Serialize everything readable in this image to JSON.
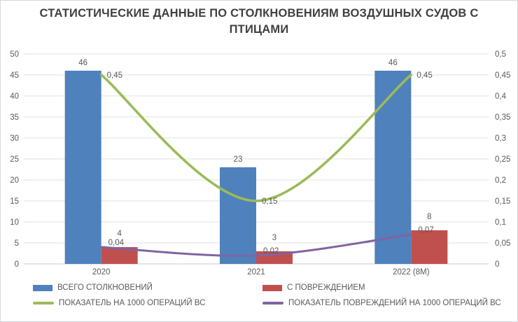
{
  "title": "СТАТИСТИЧЕСКИЕ ДАННЫЕ ПО СТОЛКНОВЕНИЯМ ВОЗДУШНЫХ СУДОВ С ПТИЦАМИ",
  "colors": {
    "total_bar": "#4F81BD",
    "damage_bar": "#C0504D",
    "rate_line": "#9BBB59",
    "damage_rate_line": "#8064A2",
    "gridline": "#E0E0E0",
    "axis_line": "#C9C9C9",
    "axis_text": "#595959",
    "title_text": "#404040"
  },
  "legend": {
    "items": [
      {
        "label": "ВСЕГО СТОЛКНОВЕНИЙ",
        "type": "bar",
        "color_key": "total_bar"
      },
      {
        "label": "С ПОВРЕЖДЕНИЕМ",
        "type": "bar",
        "color_key": "damage_bar"
      },
      {
        "label": "ПОКАЗАТЕЛЬ НА 1000 ОПЕРАЦИЙ ВС",
        "type": "line",
        "color_key": "rate_line"
      },
      {
        "label": "ПОКАЗАТЕЛЬ ПОВРЕЖДЕНИЙ НА 1000 ОПЕРАЦИЙ ВС",
        "type": "line",
        "color_key": "damage_rate_line"
      }
    ]
  },
  "chart_data": {
    "type": "combo",
    "title": "СТАТИСТИЧЕСКИЕ ДАННЫЕ ПО СТОЛКНОВЕНИЯМ ВОЗДУШНЫХ СУДОВ С ПТИЦАМИ",
    "categories": [
      "2020",
      "2021",
      "2022 (8М)"
    ],
    "series": [
      {
        "key": "total",
        "name": "ВСЕГО СТОЛКНОВЕНИЙ",
        "type": "bar",
        "axis": "left",
        "color_key": "total_bar",
        "values": [
          46,
          23,
          46
        ],
        "labels": [
          "46",
          "23",
          "46"
        ]
      },
      {
        "key": "damage",
        "name": "С ПОВРЕЖДЕНИЕМ",
        "type": "bar",
        "axis": "left",
        "color_key": "damage_bar",
        "values": [
          4,
          3,
          8
        ],
        "labels": [
          "4",
          "3",
          "8"
        ]
      },
      {
        "key": "rate",
        "name": "ПОКАЗАТЕЛЬ НА 1000 ОПЕРАЦИЙ ВС",
        "type": "line",
        "axis": "right",
        "color_key": "rate_line",
        "smooth": true,
        "values": [
          0.45,
          0.15,
          0.45
        ],
        "labels": [
          "0,45",
          "0,15",
          "0,45"
        ]
      },
      {
        "key": "damage_rate",
        "name": "ПОКАЗАТЕЛЬ ПОВРЕЖДЕНИЙ НА 1000 ОПЕРАЦИЙ ВС",
        "type": "line",
        "axis": "right",
        "color_key": "damage_rate_line",
        "smooth": true,
        "values": [
          0.04,
          0.02,
          0.07
        ],
        "labels": [
          "0,04",
          "0,02",
          "0,07"
        ]
      }
    ],
    "left_axis": {
      "min": 0,
      "max": 50,
      "step": 5,
      "tick_labels": [
        "0",
        "5",
        "10",
        "15",
        "20",
        "25",
        "30",
        "35",
        "40",
        "45",
        "50"
      ]
    },
    "right_axis": {
      "min": 0,
      "max": 0.5,
      "step": 0.05,
      "tick_labels": [
        "0",
        "0,05",
        "0,1",
        "0,15",
        "0,2",
        "0,25",
        "0,3",
        "0,35",
        "0,4",
        "0,45",
        "0,5"
      ]
    },
    "grid": true,
    "smooth_lines": true,
    "legend_position": "bottom"
  }
}
